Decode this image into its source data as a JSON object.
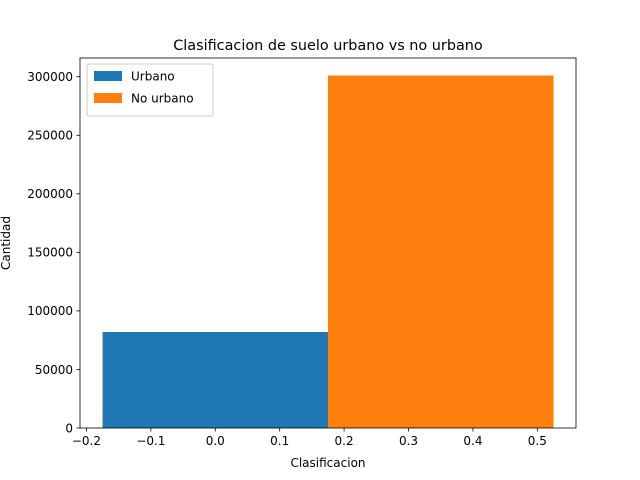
{
  "chart_data": {
    "type": "bar",
    "title": "Clasificacion de suelo urbano vs no urbano",
    "xlabel": "Clasificacion",
    "ylabel": "Cantidad",
    "xlim": [
      -0.21,
      0.56
    ],
    "ylim": [
      0,
      316000
    ],
    "xticks": [
      -0.2,
      -0.1,
      0.0,
      0.1,
      0.2,
      0.3,
      0.4,
      0.5
    ],
    "xtick_labels": [
      "−0.2",
      "−0.1",
      "0.0",
      "0.1",
      "0.2",
      "0.3",
      "0.4",
      "0.5"
    ],
    "yticks": [
      0,
      50000,
      100000,
      150000,
      200000,
      250000,
      300000
    ],
    "ytick_labels": [
      "0",
      "50000",
      "100000",
      "150000",
      "200000",
      "250000",
      "300000"
    ],
    "grid": false,
    "legend_position": "top-left",
    "series": [
      {
        "name": "Urbano",
        "x_start": -0.175,
        "x_end": 0.175,
        "value": 82000,
        "color": "#1f77b4"
      },
      {
        "name": "No urbano",
        "x_start": 0.175,
        "x_end": 0.525,
        "value": 301000,
        "color": "#ff7f0e"
      }
    ]
  }
}
